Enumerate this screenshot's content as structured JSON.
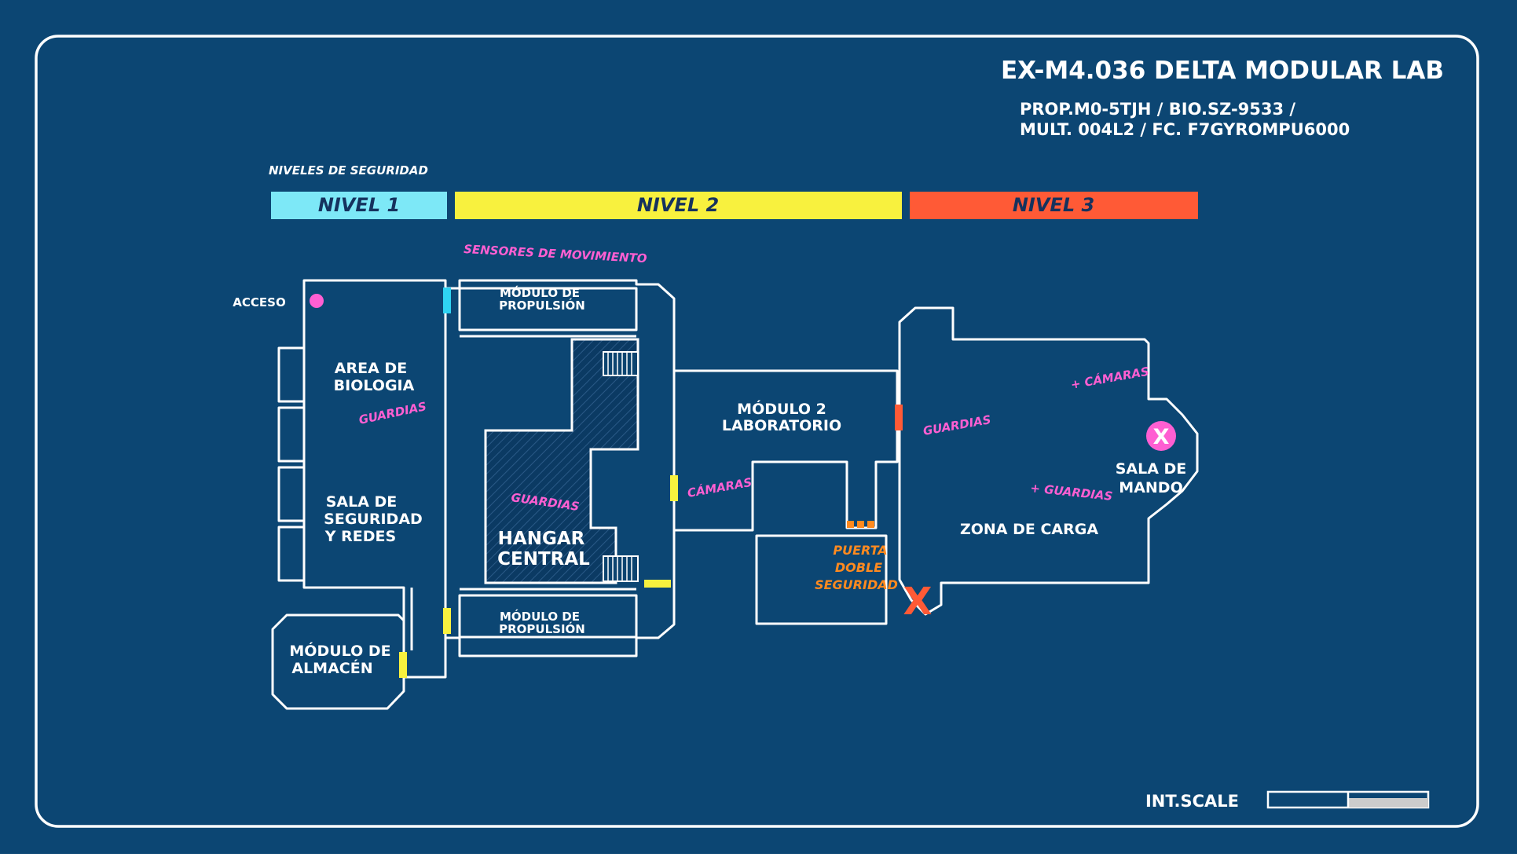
{
  "title": "EX-M4.036 DELTA MODULAR LAB",
  "subtitle_line1": "PROP.M0-5TJH / BIO.SZ-9533 /",
  "subtitle_line2": "MULT. 004L2 / FC. F7GYROMPU6000",
  "security": {
    "heading": "NIVELES DE SEGURIDAD",
    "levels": [
      {
        "label": "NIVEL 1",
        "color": "#7de8f7"
      },
      {
        "label": "NIVEL 2",
        "color": "#f8f13e"
      },
      {
        "label": "NIVEL 3",
        "color": "#ff5a36"
      }
    ]
  },
  "colors": {
    "background": "#0c4470",
    "line": "#ffffff",
    "pink": "#ff5fd2",
    "orange": "#ff8a1f",
    "yellow": "#f8f13e",
    "cyan": "#2fd3f2",
    "red": "#ff5a36"
  },
  "labels": {
    "access": "ACCESO",
    "motion_sensors": "SENSORES DE MOVIMIENTO",
    "propulsion_top_1": "MÓDULO DE",
    "propulsion_top_2": "PROPULSIÓN",
    "propulsion_bottom_1": "MÓDULO DE",
    "propulsion_bottom_2": "PROPULSIÓN",
    "biology_1": "AREA DE",
    "biology_2": "BIOLOGIA",
    "guards_biology": "GUARDIAS",
    "security_1": "SALA DE",
    "security_2": "SEGURIDAD",
    "security_3": "Y REDES",
    "storage_1": "MÓDULO DE",
    "storage_2": "ALMACÉN",
    "guards_hangar": "GUARDIAS",
    "hangar_1": "HANGAR",
    "hangar_2": "CENTRAL",
    "lab_1": "MÓDULO 2",
    "lab_2": "LABORATORIO",
    "cameras_lab": "CÁMARAS",
    "door_1": "PUERTA",
    "door_2": "DOBLE",
    "door_3": "SEGURIDAD",
    "guards_cargo": "GUARDIAS",
    "cameras_cargo": "+ CÁMARAS",
    "guards_plus": "+ GUARDIAS",
    "cargo": "ZONA DE CARGA",
    "command_1": "SALA DE",
    "command_2": "MANDO",
    "target_mark": "X",
    "breach_mark": "X"
  },
  "scale_label": "INT.SCALE",
  "icons": {
    "access_marker": "pink-dot",
    "target_marker": "pink-x-circle",
    "breach_marker": "orange-x",
    "stairs": "stairs-hatch"
  }
}
